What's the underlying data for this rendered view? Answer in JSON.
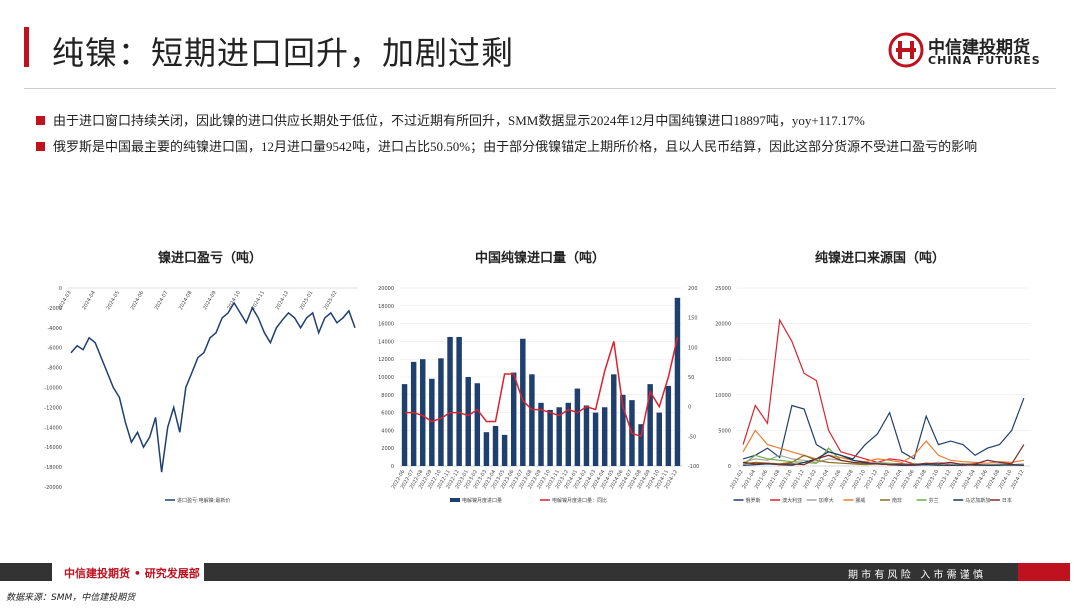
{
  "header": {
    "title": "纯镍：短期进口回升，加剧过剩",
    "logo_cn": "中信建投期货",
    "logo_en": "CHINA FUTURES"
  },
  "bullets": [
    "由于进口窗口持续关闭，因此镍的进口供应长期处于低位，不过近期有所回升，SMM数据显示2024年12月中国纯镍进口18897吨，yoy+117.17%",
    "俄罗斯是中国最主要的纯镍进口国，12月进口量9542吨，进口占比50.50%；由于部分俄镍锚定上期所价格，且以人民币结算，因此这部分货源不受进口盈亏的影响"
  ],
  "charts": [
    {
      "type": "line",
      "title": "镍进口盈亏（吨）",
      "grid": false,
      "categories": [
        "2024-03",
        null,
        null,
        null,
        "2024-04",
        null,
        null,
        null,
        "2024-05",
        null,
        null,
        null,
        "2024-06",
        null,
        null,
        null,
        "2024-07",
        null,
        null,
        null,
        "2024-08",
        null,
        null,
        null,
        "2024-09",
        null,
        null,
        null,
        "2024-10",
        null,
        null,
        null,
        "2024-11",
        null,
        null,
        null,
        "2024-12",
        null,
        null,
        null,
        "2025-01",
        null,
        null,
        null,
        "2025-02",
        null,
        null,
        null
      ],
      "series": [
        {
          "name": "进口盈亏:电解镍:最新价",
          "color": "#1f3f6e",
          "values": [
            -6500,
            -5800,
            -6200,
            -5000,
            -5500,
            -7000,
            -8500,
            -10000,
            -11000,
            -13500,
            -15500,
            -14500,
            -16000,
            -15000,
            -13000,
            -18500,
            -14000,
            -12000,
            -14500,
            -10000,
            -8500,
            -7000,
            -6500,
            -5000,
            -4500,
            -3000,
            -2500,
            -1500,
            -2500,
            -3500,
            -2000,
            -3000,
            -4500,
            -5500,
            -4000,
            -3200,
            -2500,
            -3000,
            -4000,
            -3000,
            -2500,
            -4500,
            -3000,
            -2500,
            -3500,
            -3000,
            -2300,
            -4000
          ]
        }
      ],
      "ylim": [
        -20000,
        0
      ],
      "yticks": [
        -20000,
        -18000,
        -16000,
        -14000,
        -12000,
        -10000,
        -8000,
        -6000,
        -4000,
        -2000,
        0
      ]
    },
    {
      "type": "bar_line",
      "title": "中国纯镍进口量（吨）",
      "grid": true,
      "categories": [
        "2022-06",
        "2022-07",
        "2022-08",
        "2022-09",
        "2022-10",
        "2022-11",
        "2022-12",
        "2023-01",
        "2023-02",
        "2023-03",
        "2023-04",
        "2023-05",
        "2023-06",
        "2023-07",
        "2023-08",
        "2023-09",
        "2023-10",
        "2023-11",
        "2023-12",
        "2024-01",
        "2024-02",
        "2024-03",
        "2024-04",
        "2024-05",
        "2024-06",
        "2024-07",
        "2024-08",
        "2024-09",
        "2024-10",
        "2024-11",
        "2024-12"
      ],
      "series": [
        {
          "name": "电解镍月度进口量",
          "color": "#1f3f6e",
          "values": [
            9200,
            11700,
            12000,
            9800,
            12100,
            14500,
            14500,
            10000,
            9300,
            3800,
            4500,
            3500,
            10500,
            14300,
            10300,
            7100,
            6300,
            6600,
            7100,
            8700,
            6800,
            6000,
            6600,
            10300,
            8000,
            7400,
            4700,
            9200,
            6000,
            9000,
            18897
          ]
        },
        {
          "name": "电解镍月度进口量：同比",
          "color": "#d9232e",
          "axis": "y2",
          "values": [
            -10,
            -10,
            -15,
            -25,
            -20,
            -10,
            -10,
            -15,
            -5,
            -25,
            -25,
            55,
            55,
            10,
            -5,
            -5,
            -10,
            -15,
            -5,
            -10,
            0,
            -5,
            60,
            110,
            0,
            -45,
            -50,
            25,
            0,
            50,
            117.17
          ]
        }
      ],
      "ylim": [
        0,
        20000
      ],
      "yticks": [
        0,
        2000,
        4000,
        6000,
        8000,
        10000,
        12000,
        14000,
        16000,
        18000,
        20000
      ],
      "y2lim": [
        -100,
        200
      ],
      "y2ticks": [
        -100,
        -50,
        0,
        50,
        100,
        150,
        200
      ]
    },
    {
      "type": "line",
      "title": "纯镍进口来源国（吨）",
      "grid": true,
      "categories": [
        "2021-02",
        "2021-04",
        "2021-06",
        "2021-08",
        "2021-10",
        "2021-12",
        "2022-02",
        "2022-04",
        "2022-06",
        "2022-08",
        "2022-10",
        "2022-12",
        "2023-02",
        "2023-04",
        "2023-06",
        "2023-08",
        "2023-10",
        "2023-12",
        "2024-02",
        "2024-04",
        "2024-06",
        "2024-08",
        "2024-10",
        "2024-12"
      ],
      "series": [
        {
          "name": "俄罗斯",
          "color": "#1f3f6e",
          "values": [
            1000,
            1500,
            2500,
            1200,
            8500,
            8000,
            3000,
            2000,
            1500,
            1000,
            3000,
            4500,
            7500,
            2000,
            1000,
            7000,
            3000,
            3500,
            3000,
            1500,
            2500,
            3000,
            5000,
            9542
          ]
        },
        {
          "name": "澳大利亚",
          "color": "#d9232e",
          "values": [
            3000,
            8500,
            6000,
            20500,
            17500,
            13000,
            12000,
            5000,
            2000,
            1500,
            1000,
            500,
            1000,
            800,
            300,
            200,
            500,
            200,
            300,
            100,
            100,
            200,
            100,
            100
          ]
        },
        {
          "name": "加拿大",
          "color": "#a6a6a6",
          "values": [
            500,
            1000,
            800,
            1500,
            1000,
            800,
            500,
            1000,
            800,
            500,
            300,
            500,
            400,
            300,
            200,
            300,
            500,
            300,
            200,
            300,
            200,
            300,
            200,
            300
          ]
        },
        {
          "name": "挪威",
          "color": "#ed7d31",
          "values": [
            2000,
            5000,
            3000,
            2500,
            2000,
            1500,
            1000,
            1500,
            1200,
            800,
            600,
            1000,
            800,
            500,
            1500,
            3500,
            1500,
            800,
            600,
            500,
            400,
            600,
            500,
            800
          ]
        },
        {
          "name": "南非",
          "color": "#8c6d1f",
          "values": [
            300,
            500,
            400,
            300,
            500,
            1500,
            800,
            500,
            400,
            300,
            200,
            300,
            200,
            100,
            200,
            300,
            200,
            100,
            200,
            100,
            100,
            200,
            100,
            200
          ]
        },
        {
          "name": "芬兰",
          "color": "#70ad47",
          "values": [
            200,
            1500,
            1000,
            800,
            600,
            500,
            400,
            2500,
            800,
            500,
            300,
            400,
            300,
            200,
            300,
            200,
            200,
            100,
            300,
            200,
            100,
            200,
            100,
            200
          ]
        },
        {
          "name": "马达加斯加",
          "color": "#203864",
          "values": [
            100,
            200,
            300,
            200,
            100,
            500,
            1000,
            2000,
            1500,
            800,
            500,
            300,
            200,
            100,
            100,
            200,
            100,
            100,
            100,
            200,
            100,
            100,
            200,
            100
          ]
        },
        {
          "name": "日本",
          "color": "#7b2c2c",
          "values": [
            500,
            300,
            400,
            200,
            300,
            200,
            1000,
            1500,
            800,
            500,
            400,
            300,
            200,
            300,
            200,
            400,
            300,
            500,
            200,
            300,
            800,
            500,
            300,
            3000
          ]
        }
      ],
      "ylim": [
        0,
        25000
      ],
      "yticks": [
        0,
        5000,
        10000,
        15000,
        20000,
        25000
      ]
    }
  ],
  "footer": {
    "left": "中信建投期货 • 研究发展部",
    "right": "期 市 有 风 险   入 市 需 谨 慎",
    "source": "数据来源：SMM，中信建投期货"
  }
}
